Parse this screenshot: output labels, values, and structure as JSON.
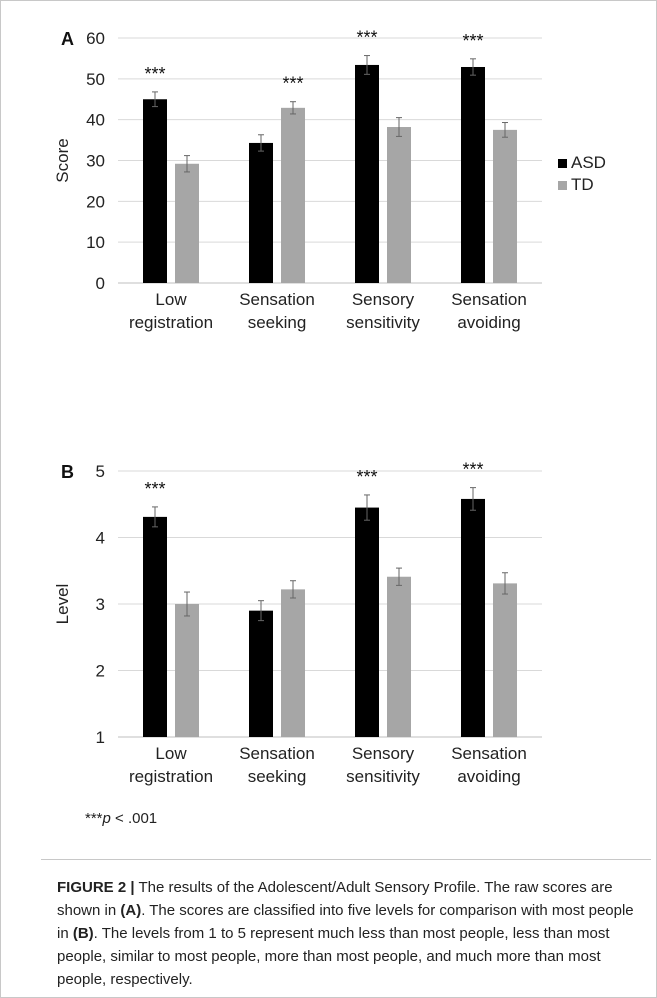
{
  "chart_data": [
    {
      "panel_label": "A",
      "type": "bar",
      "categories": [
        [
          "Low",
          "registration"
        ],
        [
          "Sensation",
          "seeking"
        ],
        [
          "Sensory",
          "sensitivity"
        ],
        [
          "Sensation",
          "avoiding"
        ]
      ],
      "series": [
        {
          "name": "ASD",
          "color": "#000000",
          "values": [
            45,
            34.3,
            53.4,
            52.9
          ],
          "errors": [
            1.8,
            2.0,
            2.3,
            2.0
          ]
        },
        {
          "name": "TD",
          "color": "#a6a6a6",
          "values": [
            29.2,
            42.9,
            38.2,
            37.5
          ],
          "errors": [
            2.0,
            1.5,
            2.3,
            1.8
          ]
        }
      ],
      "significance": [
        "***",
        "***",
        "***",
        "***"
      ],
      "significance_over": [
        "ASD",
        "TD",
        "ASD",
        "ASD"
      ],
      "ylabel": "Score",
      "ylim": [
        0,
        60
      ],
      "yticks": [
        "0",
        "10",
        "20",
        "30",
        "40",
        "50",
        "60"
      ],
      "grid": true,
      "legend": "right"
    },
    {
      "panel_label": "B",
      "type": "bar",
      "categories": [
        [
          "Low",
          "registration"
        ],
        [
          "Sensation",
          "seeking"
        ],
        [
          "Sensory",
          "sensitivity"
        ],
        [
          "Sensation",
          "avoiding"
        ]
      ],
      "series": [
        {
          "name": "ASD",
          "color": "#000000",
          "values": [
            4.31,
            2.9,
            4.45,
            4.58
          ],
          "errors": [
            0.15,
            0.15,
            0.19,
            0.17
          ]
        },
        {
          "name": "TD",
          "color": "#a6a6a6",
          "values": [
            3.0,
            3.22,
            3.41,
            3.31
          ],
          "errors": [
            0.18,
            0.13,
            0.13,
            0.16
          ]
        }
      ],
      "significance": [
        "***",
        "",
        "***",
        "***"
      ],
      "significance_over": [
        "ASD",
        "",
        "ASD",
        "ASD"
      ],
      "ylabel": "Level",
      "ylim": [
        1,
        5
      ],
      "yticks": [
        "1",
        "2",
        "3",
        "4",
        "5"
      ],
      "grid": true,
      "legend": "none"
    }
  ],
  "footnote": {
    "stars": "***",
    "p": "p",
    "rest": " < .001"
  },
  "caption": {
    "label": "FIGURE 2 |",
    "t1": " The results of the Adolescent/Adult Sensory Profile. The raw scores are shown in ",
    "a": "(A)",
    "t2": ". The scores are classified into five levels for comparison with most people in ",
    "b": "(B)",
    "t3": ". The levels from 1 to 5 represent much less than most people, less than most people, similar to most people, more than most people, and much more than most people, respectively."
  }
}
